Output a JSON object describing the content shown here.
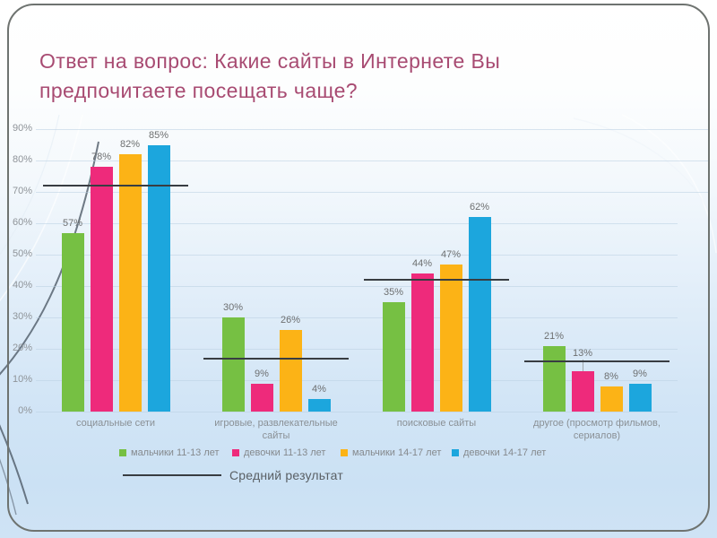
{
  "slide": {
    "title": "Ответ на вопрос: Какие сайты в Интернете Вы предпочитаете посещать чаще?"
  },
  "colors": {
    "title_text": "#a84b72",
    "series_green": "#76c043",
    "series_pink": "#ee2a7b",
    "series_orange": "#fcb316",
    "series_blue": "#1ca6dd",
    "average_line": "#383d42",
    "axis_text": "#8f9499"
  },
  "chart_data": {
    "type": "bar",
    "title": "Ответ на вопрос: Какие сайты в Интернете Вы предпочитаете посещать чаще?",
    "categories": [
      "социальные сети",
      "игровые, развлекательные сайты",
      "поисковые сайты",
      "другое (просмотр фильмов, сериалов)"
    ],
    "series": [
      {
        "name": "мальчики 11-13 лет",
        "color": "#76c043",
        "values": [
          57,
          30,
          35,
          21
        ]
      },
      {
        "name": "девочки 11-13 лет",
        "color": "#ee2a7b",
        "values": [
          78,
          9,
          44,
          13
        ]
      },
      {
        "name": "мальчики 14-17 лет",
        "color": "#fcb316",
        "values": [
          82,
          26,
          47,
          8
        ]
      },
      {
        "name": "девочки 14-17 лет",
        "color": "#1ca6dd",
        "values": [
          85,
          4,
          62,
          9
        ]
      }
    ],
    "value_suffix": "%",
    "average_line": {
      "label": "Средний результат",
      "values": [
        72,
        17,
        42,
        16
      ]
    },
    "leader_line": {
      "category_index": 3,
      "series_index": 1
    },
    "y_ticks": [
      "0%",
      "10%",
      "20%",
      "30%",
      "40%",
      "50%",
      "60%",
      "70%",
      "80%",
      "90%"
    ],
    "ylim": [
      0,
      90
    ],
    "grid": true,
    "legend_position": "bottom"
  }
}
